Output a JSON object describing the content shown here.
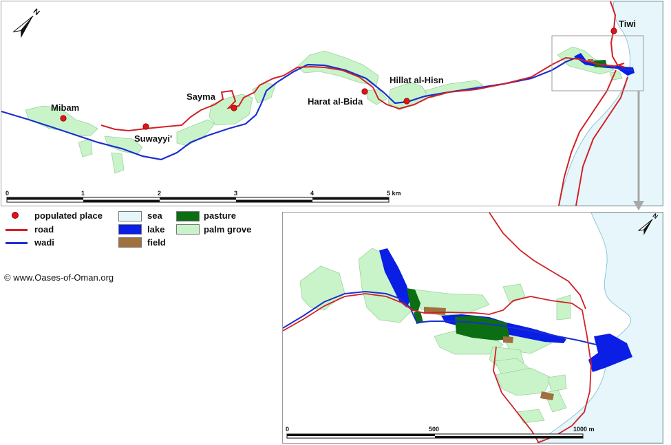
{
  "places": [
    {
      "name": "Mibam"
    },
    {
      "name": "Sayma"
    },
    {
      "name": "Suwayyi'"
    },
    {
      "name": "Harat al-Bida"
    },
    {
      "name": "Hillat al-Hisn"
    },
    {
      "name": "Tiwi"
    }
  ],
  "main_scale": {
    "ticks": [
      "0",
      "1",
      "2",
      "3",
      "4",
      "5 km"
    ]
  },
  "inset_scale": {
    "ticks": [
      "0",
      "500",
      "1000 m"
    ]
  },
  "legend": {
    "populated_place": "populated place",
    "road": "road",
    "wadi": "wadi",
    "sea": "sea",
    "lake": "lake",
    "field": "field",
    "pasture": "pasture",
    "palm_grove": "palm grove"
  },
  "colors": {
    "sea": "#e6f6fa",
    "lake": "#0a1ee6",
    "field": "#a0703f",
    "pasture": "#0b6e12",
    "palm_grove": "#c9f3c9",
    "road": "#d31f26",
    "wadi": "#1a2fd0",
    "place_dot": "#e0151b"
  },
  "north_arrow": {
    "label": "N"
  },
  "copyright": "© www.Oases-of-Oman.org"
}
